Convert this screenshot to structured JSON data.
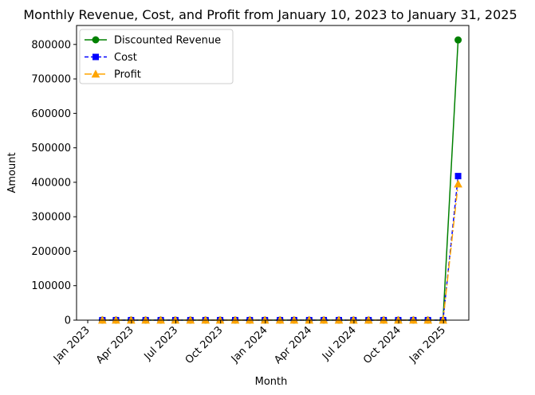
{
  "chart_data": {
    "type": "line",
    "title": "Monthly Revenue, Cost, and Profit from January 10, 2023 to January 31, 2025",
    "xlabel": "Month",
    "ylabel": "Amount",
    "x": [
      "2023-01-31",
      "2023-02-28",
      "2023-03-31",
      "2023-04-30",
      "2023-05-31",
      "2023-06-30",
      "2023-07-31",
      "2023-08-31",
      "2023-09-30",
      "2023-10-31",
      "2023-11-30",
      "2023-12-31",
      "2024-01-31",
      "2024-02-29",
      "2024-03-31",
      "2024-04-30",
      "2024-05-31",
      "2024-06-30",
      "2024-07-31",
      "2024-08-31",
      "2024-09-30",
      "2024-10-31",
      "2024-11-30",
      "2024-12-31",
      "2025-01-31"
    ],
    "x_ticks": [
      {
        "date": "2023-01-01",
        "label": "Jan 2023"
      },
      {
        "date": "2023-04-01",
        "label": "Apr 2023"
      },
      {
        "date": "2023-07-01",
        "label": "Jul 2023"
      },
      {
        "date": "2023-10-01",
        "label": "Oct 2023"
      },
      {
        "date": "2024-01-01",
        "label": "Jan 2024"
      },
      {
        "date": "2024-04-01",
        "label": "Apr 2024"
      },
      {
        "date": "2024-07-01",
        "label": "Jul 2024"
      },
      {
        "date": "2024-10-01",
        "label": "Oct 2024"
      },
      {
        "date": "2025-01-01",
        "label": "Jan 2025"
      }
    ],
    "xlim": [
      "2022-12-09",
      "2025-02-22"
    ],
    "ylim": [
      0,
      855000
    ],
    "y_ticks": [
      0,
      100000,
      200000,
      300000,
      400000,
      500000,
      600000,
      700000,
      800000
    ],
    "y_tick_labels": [
      "0",
      "100000",
      "200000",
      "300000",
      "400000",
      "500000",
      "600000",
      "700000",
      "800000"
    ],
    "grid": false,
    "legend_position": "upper-left",
    "series": [
      {
        "name": "Discounted Revenue",
        "color": "#008000",
        "marker": "circle",
        "line_style": "solid",
        "values": [
          0,
          0,
          0,
          0,
          0,
          0,
          0,
          0,
          0,
          0,
          0,
          0,
          0,
          0,
          0,
          0,
          0,
          0,
          0,
          0,
          0,
          0,
          0,
          0,
          813000
        ]
      },
      {
        "name": "Cost",
        "color": "#0000ff",
        "marker": "square",
        "line_style": "dashed",
        "values": [
          0,
          0,
          0,
          0,
          0,
          0,
          0,
          0,
          0,
          0,
          0,
          0,
          0,
          0,
          0,
          0,
          0,
          0,
          0,
          0,
          0,
          0,
          0,
          0,
          418000
        ]
      },
      {
        "name": "Profit",
        "color": "#ffa500",
        "marker": "triangle",
        "line_style": "dashdot",
        "values": [
          0,
          0,
          0,
          0,
          0,
          0,
          0,
          0,
          0,
          0,
          0,
          0,
          0,
          0,
          0,
          0,
          0,
          0,
          0,
          0,
          0,
          0,
          0,
          0,
          395000
        ]
      }
    ]
  }
}
